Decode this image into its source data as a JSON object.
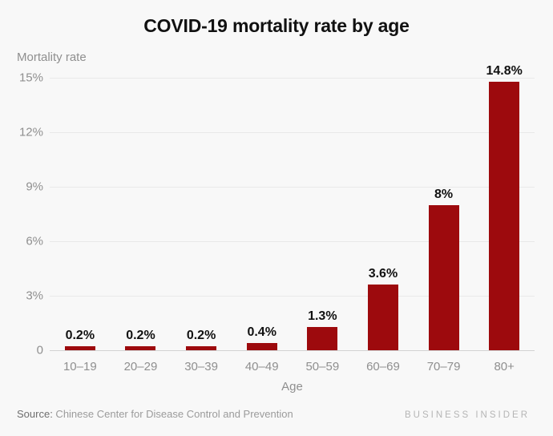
{
  "chart_data": {
    "type": "bar",
    "title": "COVID-19 mortality rate by age",
    "ylabel": "Mortality rate",
    "xlabel": "Age",
    "categories": [
      "10–19",
      "20–29",
      "30–39",
      "40–49",
      "50–59",
      "60–69",
      "70–79",
      "80+"
    ],
    "values": [
      0.2,
      0.2,
      0.2,
      0.4,
      1.3,
      3.6,
      8,
      14.8
    ],
    "bar_labels": [
      "0.2%",
      "0.2%",
      "0.2%",
      "0.4%",
      "1.3%",
      "3.6%",
      "8%",
      "14.8%"
    ],
    "y_ticks": [
      {
        "value": 15,
        "label": "15%"
      },
      {
        "value": 12,
        "label": "12%"
      },
      {
        "value": 9,
        "label": "9%"
      },
      {
        "value": 6,
        "label": "6%"
      },
      {
        "value": 3,
        "label": "3%"
      },
      {
        "value": 0,
        "label": "0"
      }
    ],
    "ylim": [
      0,
      15
    ],
    "grid": true,
    "legend_position": "none",
    "bar_color": "#9d0a0d"
  },
  "footer": {
    "source_label": "Source:",
    "source_text": " Chinese Center for Disease Control and Prevention",
    "brand": "BUSINESS INSIDER"
  },
  "colors": {
    "background": "#f8f8f8",
    "bar": "#9d0a0d",
    "title_text": "#111111",
    "axis_text": "#8f8f8f",
    "gridline": "#e9e9e9",
    "axis_line": "#d2d2d2",
    "source_label": "#6f6f6f",
    "source_text": "#9b9b9b",
    "brand": "#b5b5b5"
  }
}
